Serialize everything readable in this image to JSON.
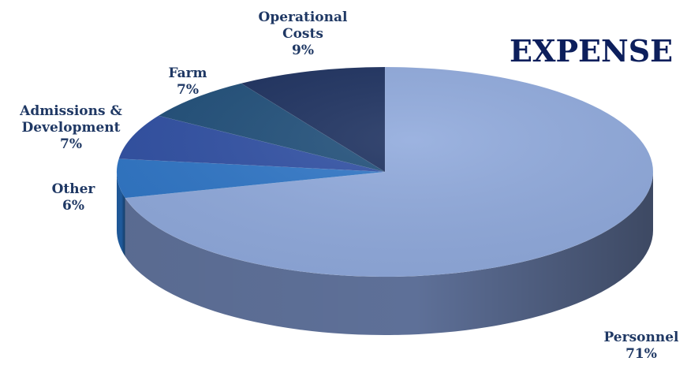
{
  "chart_data": {
    "type": "pie",
    "title": "EXPENSE",
    "categories": [
      "Personnel",
      "Other",
      "Admissions & Development",
      "Farm",
      "Operational Costs"
    ],
    "values": [
      71,
      6,
      7,
      7,
      9
    ],
    "labels": [
      {
        "lines": [
          "Personnel"
        ],
        "pct": "71%"
      },
      {
        "lines": [
          "Other"
        ],
        "pct": "6%"
      },
      {
        "lines": [
          "Admissions &",
          "Development"
        ],
        "pct": "7%"
      },
      {
        "lines": [
          "Farm"
        ],
        "pct": "7%"
      },
      {
        "lines": [
          "Operational",
          "Costs"
        ],
        "pct": "9%"
      }
    ],
    "colors": [
      "#8fa9dc",
      "#2e75c6",
      "#2f4fa3",
      "#1f4e79",
      "#1b2f5e"
    ],
    "side_colors": [
      "#5e7098",
      "#1f5a9c",
      "#21397a",
      "#163a5c",
      "#121f40"
    ],
    "style": "3d",
    "legend": "none"
  }
}
